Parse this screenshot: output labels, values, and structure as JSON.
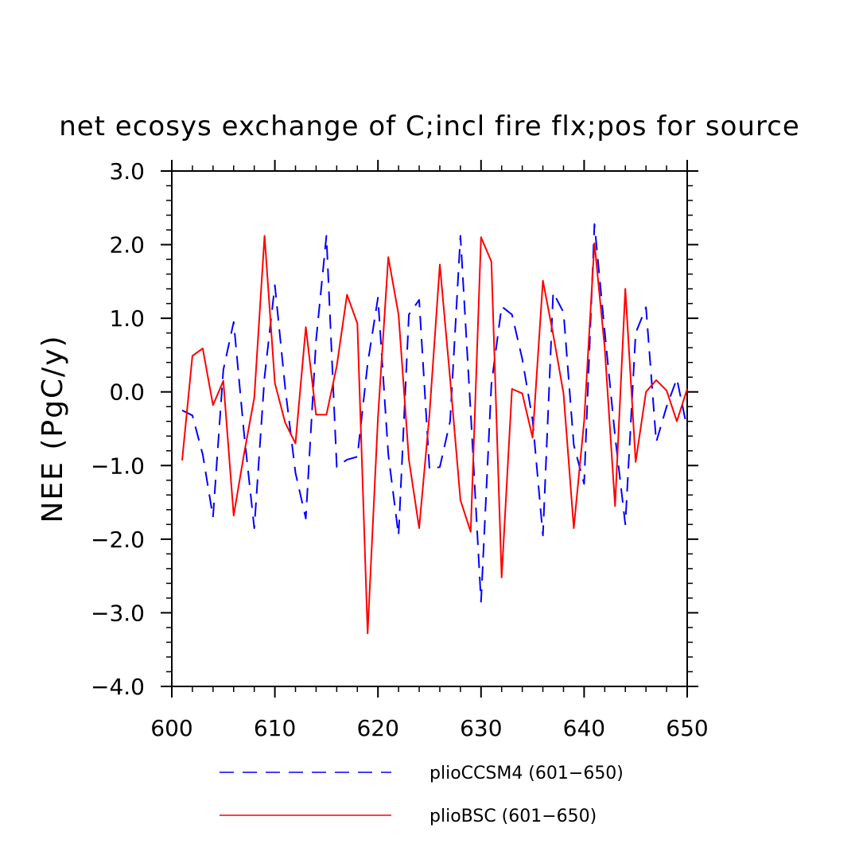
{
  "chart_data": {
    "type": "line",
    "title": "net ecosys exchange of C;incl fire flx;pos for source",
    "xlabel": "",
    "ylabel": "NEE  (PgC/y)",
    "xlim": [
      600,
      650
    ],
    "ylim": [
      -4.0,
      3.0
    ],
    "x_ticks": [
      600,
      610,
      620,
      630,
      640,
      650
    ],
    "x_tick_labels": [
      "600",
      "610",
      "620",
      "630",
      "640",
      "650"
    ],
    "y_ticks": [
      3.0,
      2.0,
      1.0,
      0.0,
      -1.0,
      -2.0,
      -3.0,
      -4.0
    ],
    "y_tick_labels": [
      "3.0",
      "2.0",
      "1.0",
      "0.0",
      "−1.0",
      "−2.0",
      "−3.0",
      "−4.0"
    ],
    "grid": false,
    "legend_position": "bottom",
    "x": [
      601,
      602,
      603,
      604,
      605,
      606,
      607,
      608,
      609,
      610,
      611,
      612,
      613,
      614,
      615,
      616,
      617,
      618,
      619,
      620,
      621,
      622,
      623,
      624,
      625,
      626,
      627,
      628,
      629,
      630,
      631,
      632,
      633,
      634,
      635,
      636,
      637,
      638,
      639,
      640,
      641,
      642,
      643,
      644,
      645,
      646,
      647,
      648,
      649,
      650
    ],
    "series": [
      {
        "name": "plioCCSM4 (601−650)",
        "color": "#0000ff",
        "dash": "dashed",
        "values": [
          -0.25,
          -0.32,
          -0.85,
          -1.7,
          0.3,
          0.95,
          -0.55,
          -1.85,
          0.2,
          1.45,
          0.05,
          -1.1,
          -1.72,
          0.7,
          2.12,
          -1.02,
          -0.92,
          -0.88,
          0.38,
          1.28,
          -0.85,
          -1.95,
          1.05,
          1.25,
          -1.05,
          -1.02,
          -0.4,
          2.12,
          -0.28,
          -2.85,
          0.1,
          1.16,
          1.05,
          0.45,
          -0.38,
          -1.95,
          1.35,
          1.08,
          -0.72,
          -1.25,
          2.28,
          0.82,
          -0.6,
          -1.8,
          0.8,
          1.15,
          -0.68,
          -0.2,
          0.18,
          -0.5
        ]
      },
      {
        "name": "plioBSC (601−650)",
        "color": "#ff0000",
        "dash": "solid",
        "values": [
          -0.93,
          0.49,
          0.59,
          -0.18,
          0.15,
          -1.68,
          -0.85,
          -0.08,
          2.12,
          0.12,
          -0.42,
          -0.7,
          0.88,
          -0.31,
          -0.31,
          0.35,
          1.32,
          0.93,
          -3.28,
          -0.35,
          1.83,
          1.05,
          -0.92,
          -1.85,
          -0.3,
          1.73,
          0.18,
          -1.47,
          -1.9,
          2.1,
          1.77,
          -2.52,
          0.04,
          -0.02,
          -0.62,
          1.51,
          0.78,
          -0.02,
          -1.85,
          -0.4,
          2.02,
          0.6,
          -1.55,
          1.4,
          -0.95,
          0.0,
          0.16,
          0.02,
          -0.4,
          0.04
        ]
      }
    ]
  }
}
